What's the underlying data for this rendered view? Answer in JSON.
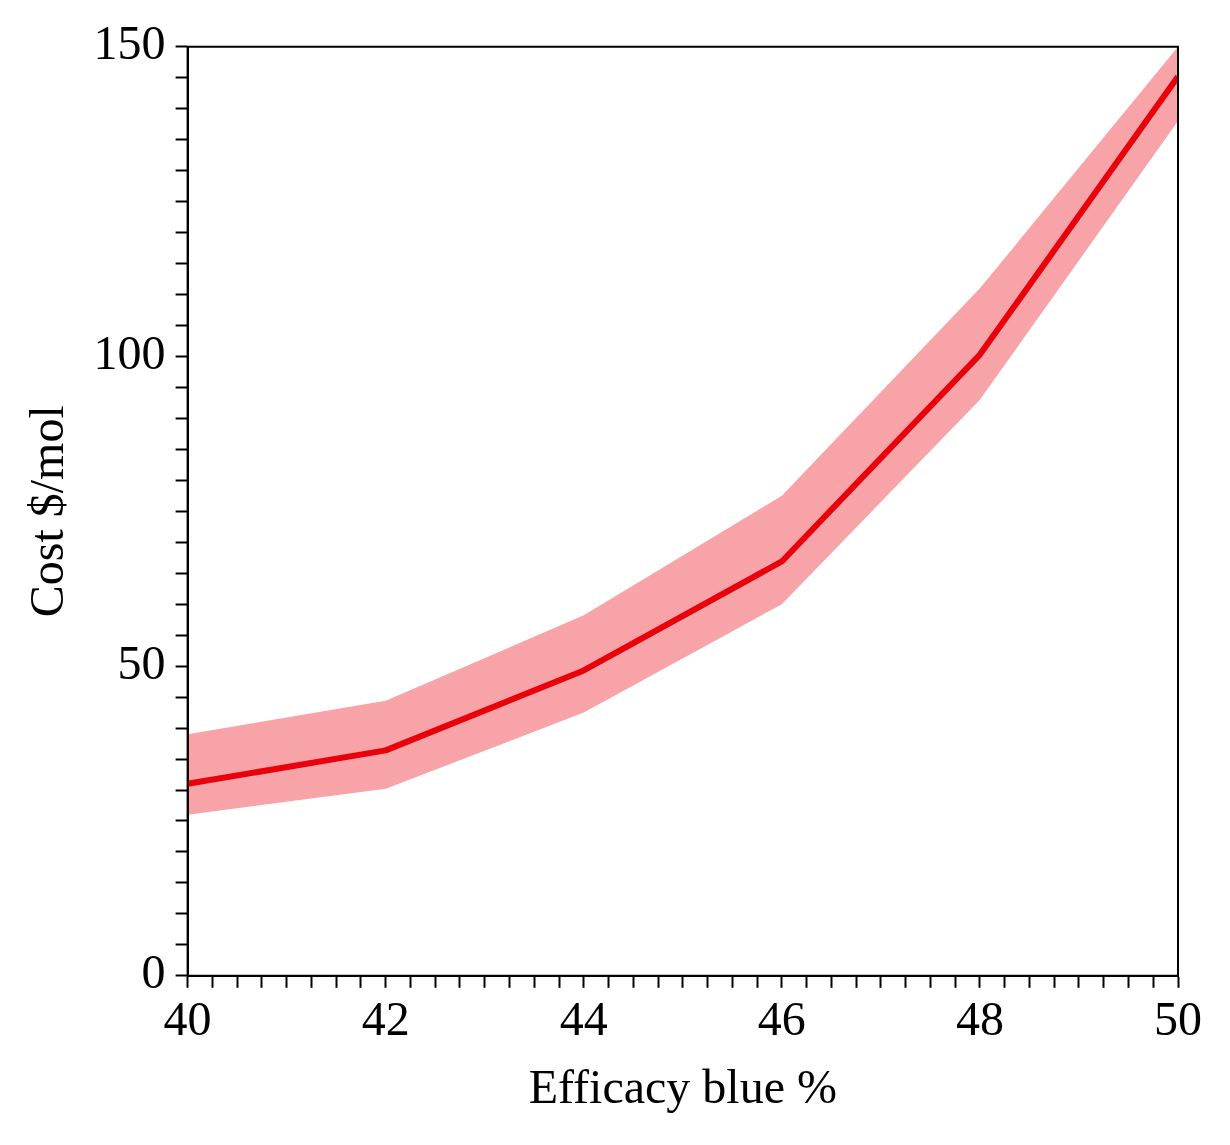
{
  "chart_data": {
    "type": "line",
    "xlabel": "Efficacy blue %",
    "ylabel": "Cost $/mol",
    "x": [
      40,
      42,
      44,
      46,
      48,
      50
    ],
    "series": [
      {
        "color": "#e8000b",
        "values": [
          31,
          36.4,
          49.3,
          66.9,
          100.3,
          145.2
        ],
        "lower": [
          26,
          30.2,
          42.5,
          60,
          93,
          138
        ],
        "upper": [
          39,
          44.4,
          58.2,
          77.5,
          111,
          150
        ]
      }
    ],
    "xlim": [
      40,
      50
    ],
    "ylim": [
      0,
      150
    ],
    "xticks": [
      40,
      {
        "value": 40.25,
        "label": null
      },
      {
        "value": 40.5,
        "label": null
      },
      {
        "value": 40.75,
        "label": null
      },
      {
        "value": 41,
        "label": null
      },
      {
        "value": 41.25,
        "label": null
      },
      {
        "value": 41.5,
        "label": null
      },
      {
        "value": 41.75,
        "label": null
      },
      42,
      {
        "value": 42.25,
        "label": null
      },
      {
        "value": 42.5,
        "label": null
      },
      {
        "value": 42.75,
        "label": null
      },
      {
        "value": 43,
        "label": null
      },
      {
        "value": 43.25,
        "label": null
      },
      {
        "value": 43.5,
        "label": null
      },
      {
        "value": 43.75,
        "label": null
      },
      44,
      {
        "value": 44.25,
        "label": null
      },
      {
        "value": 44.5,
        "label": null
      },
      {
        "value": 44.75,
        "label": null
      },
      {
        "value": 45,
        "label": null
      },
      {
        "value": 45.25,
        "label": null
      },
      {
        "value": 45.5,
        "label": null
      },
      {
        "value": 45.75,
        "label": null
      },
      46,
      {
        "value": 46.25,
        "label": null
      },
      {
        "value": 46.5,
        "label": null
      },
      {
        "value": 46.75,
        "label": null
      },
      {
        "value": 47,
        "label": null
      },
      {
        "value": 47.25,
        "label": null
      },
      {
        "value": 47.5,
        "label": null
      },
      {
        "value": 47.75,
        "label": null
      },
      48,
      {
        "value": 48.25,
        "label": null
      },
      {
        "value": 48.5,
        "label": null
      },
      {
        "value": 48.75,
        "label": null
      },
      {
        "value": 49,
        "label": null
      },
      {
        "value": 49.25,
        "label": null
      },
      {
        "value": 49.5,
        "label": null
      },
      {
        "value": 49.75,
        "label": null
      },
      50
    ],
    "yticks": [
      0,
      {
        "value": 5,
        "label": null
      },
      {
        "value": 10,
        "label": null
      },
      {
        "value": 15,
        "label": null
      },
      {
        "value": 20,
        "label": null
      },
      {
        "value": 25,
        "label": null
      },
      {
        "value": 30,
        "label": null
      },
      {
        "value": 35,
        "label": null
      },
      {
        "value": 40,
        "label": null
      },
      {
        "value": 45,
        "label": null
      },
      50,
      {
        "value": 55,
        "label": null
      },
      {
        "value": 60,
        "label": null
      },
      {
        "value": 65,
        "label": null
      },
      {
        "value": 70,
        "label": null
      },
      {
        "value": 75,
        "label": null
      },
      {
        "value": 80,
        "label": null
      },
      {
        "value": 85,
        "label": null
      },
      {
        "value": 90,
        "label": null
      },
      {
        "value": 95,
        "label": null
      },
      100,
      {
        "value": 105,
        "label": null
      },
      {
        "value": 110,
        "label": null
      },
      {
        "value": 115,
        "label": null
      },
      {
        "value": 120,
        "label": null
      },
      {
        "value": 125,
        "label": null
      },
      {
        "value": 130,
        "label": null
      },
      {
        "value": 135,
        "label": null
      },
      {
        "value": 140,
        "label": null
      },
      {
        "value": 145,
        "label": null
      },
      150
    ],
    "grid": false,
    "legend": false,
    "marker": "none",
    "line_style": "solid"
  }
}
